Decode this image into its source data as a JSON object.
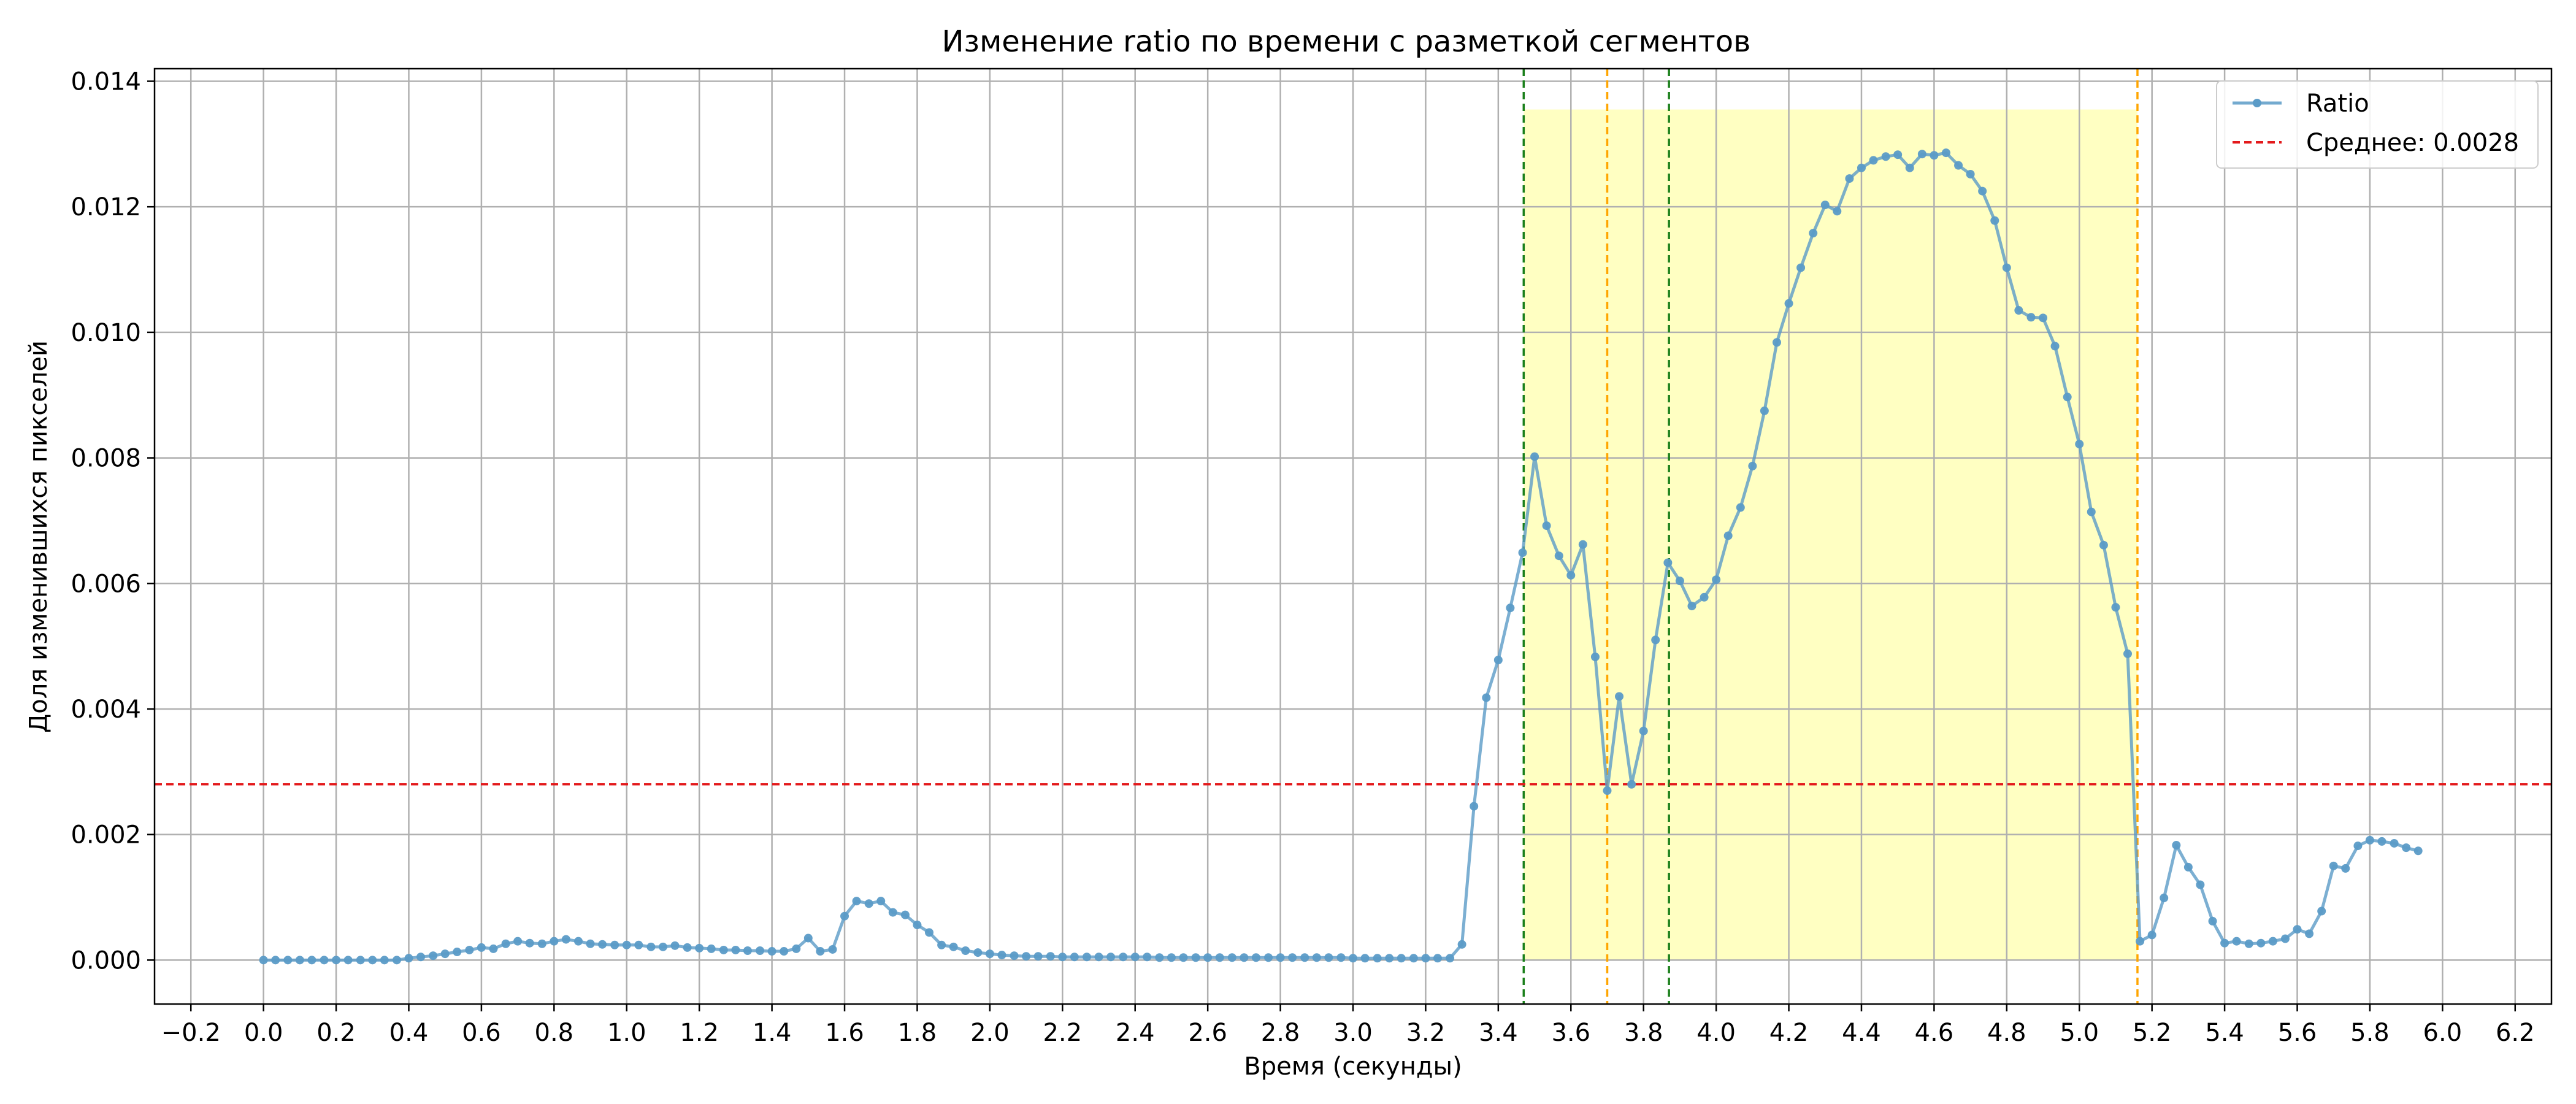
{
  "chart_data": {
    "type": "line",
    "title": "Изменение ratio по времени с разметкой сегментов",
    "xlabel": "Время (секунды)",
    "ylabel": "Доля изменившихся пикселей",
    "xlim": [
      -0.3,
      6.3
    ],
    "ylim": [
      -0.0007,
      0.0142
    ],
    "grid": true,
    "legend_position": "top-right",
    "x_ticks": [
      -0.2,
      0.0,
      0.2,
      0.4,
      0.6,
      0.8,
      1.0,
      1.2,
      1.4,
      1.6,
      1.8,
      2.0,
      2.2,
      2.4,
      2.6,
      2.8,
      3.0,
      3.2,
      3.4,
      3.6,
      3.8,
      4.0,
      4.2,
      4.4,
      4.6,
      4.8,
      5.0,
      5.2,
      5.4,
      5.6,
      5.8,
      6.0,
      6.2
    ],
    "x_tick_labels": [
      "−0.2",
      "0.0",
      "0.2",
      "0.4",
      "0.6",
      "0.8",
      "1.0",
      "1.2",
      "1.4",
      "1.6",
      "1.8",
      "2.0",
      "2.2",
      "2.4",
      "2.6",
      "2.8",
      "3.0",
      "3.2",
      "3.4",
      "3.6",
      "3.8",
      "4.0",
      "4.2",
      "4.4",
      "4.6",
      "4.8",
      "5.0",
      "5.2",
      "5.4",
      "5.6",
      "5.8",
      "6.0",
      "6.2"
    ],
    "y_ticks": [
      0,
      0.002,
      0.004,
      0.006,
      0.008,
      0.01,
      0.012,
      0.014
    ],
    "y_tick_labels": [
      "0.000",
      "0.002",
      "0.004",
      "0.006",
      "0.008",
      "0.010",
      "0.012",
      "0.014"
    ],
    "series": [
      {
        "name": "Ratio",
        "color": "#5b9bc7",
        "x": [
          0.0,
          0.033,
          0.067,
          0.1,
          0.133,
          0.167,
          0.2,
          0.233,
          0.267,
          0.3,
          0.333,
          0.367,
          0.4,
          0.433,
          0.467,
          0.5,
          0.533,
          0.567,
          0.6,
          0.633,
          0.667,
          0.7,
          0.733,
          0.767,
          0.8,
          0.833,
          0.867,
          0.9,
          0.933,
          0.967,
          1.0,
          1.033,
          1.067,
          1.1,
          1.133,
          1.167,
          1.2,
          1.233,
          1.267,
          1.3,
          1.333,
          1.367,
          1.4,
          1.433,
          1.467,
          1.5,
          1.533,
          1.567,
          1.6,
          1.633,
          1.667,
          1.7,
          1.733,
          1.767,
          1.8,
          1.833,
          1.867,
          1.9,
          1.933,
          1.967,
          2.0,
          2.033,
          2.067,
          2.1,
          2.133,
          2.167,
          2.2,
          2.233,
          2.267,
          2.3,
          2.333,
          2.367,
          2.4,
          2.433,
          2.467,
          2.5,
          2.533,
          2.567,
          2.6,
          2.633,
          2.667,
          2.7,
          2.733,
          2.767,
          2.8,
          2.833,
          2.867,
          2.9,
          2.933,
          2.967,
          3.0,
          3.033,
          3.067,
          3.1,
          3.133,
          3.167,
          3.2,
          3.233,
          3.267,
          3.3,
          3.333,
          3.367,
          3.4,
          3.433,
          3.467,
          3.5,
          3.533,
          3.567,
          3.6,
          3.633,
          3.667,
          3.7,
          3.733,
          3.767,
          3.8,
          3.833,
          3.867,
          3.9,
          3.933,
          3.967,
          4.0,
          4.033,
          4.067,
          4.1,
          4.133,
          4.167,
          4.2,
          4.233,
          4.267,
          4.3,
          4.333,
          4.367,
          4.4,
          4.433,
          4.467,
          4.5,
          4.533,
          4.567,
          4.6,
          4.633,
          4.667,
          4.7,
          4.733,
          4.767,
          4.8,
          4.833,
          4.867,
          4.9,
          4.933,
          4.967,
          5.0,
          5.033,
          5.067,
          5.1,
          5.133,
          5.167,
          5.2,
          5.233,
          5.267,
          5.3,
          5.333,
          5.367,
          5.4,
          5.433,
          5.467,
          5.5,
          5.533,
          5.567,
          5.6,
          5.633,
          5.667,
          5.7,
          5.733,
          5.767,
          5.8,
          5.833,
          5.867,
          5.9,
          5.933
        ],
        "values": [
          0.0,
          0.0,
          0.0,
          0.0,
          0.0,
          0.0,
          0.0,
          0.0,
          0.0,
          0.0,
          0.0,
          0.0,
          3e-05,
          5e-05,
          7e-05,
          0.0001,
          0.00013,
          0.00016,
          0.0002,
          0.00018,
          0.00026,
          0.0003,
          0.00027,
          0.00026,
          0.0003,
          0.00033,
          0.0003,
          0.00026,
          0.00025,
          0.00024,
          0.00024,
          0.00024,
          0.00021,
          0.00021,
          0.00023,
          0.0002,
          0.00019,
          0.00018,
          0.00016,
          0.00016,
          0.00015,
          0.00015,
          0.00014,
          0.00014,
          0.00018,
          0.00035,
          0.00014,
          0.00017,
          0.0007,
          0.00094,
          0.0009,
          0.00094,
          0.00076,
          0.00072,
          0.00056,
          0.00044,
          0.00024,
          0.00021,
          0.00015,
          0.00012,
          0.0001,
          8e-05,
          7e-05,
          6e-05,
          6e-05,
          6e-05,
          5e-05,
          5e-05,
          5e-05,
          5e-05,
          5e-05,
          5e-05,
          5e-05,
          5e-05,
          4e-05,
          4e-05,
          4e-05,
          4e-05,
          4e-05,
          4e-05,
          4e-05,
          4e-05,
          4e-05,
          4e-05,
          4e-05,
          4e-05,
          4e-05,
          4e-05,
          4e-05,
          4e-05,
          3e-05,
          3e-05,
          3e-05,
          3e-05,
          3e-05,
          3e-05,
          3e-05,
          3e-05,
          3e-05,
          0.00025,
          0.00245,
          0.00418,
          0.00478,
          0.00561,
          0.00649,
          0.00802,
          0.00692,
          0.00644,
          0.00613,
          0.00662,
          0.00483,
          0.0027,
          0.0042,
          0.0028,
          0.00365,
          0.0051,
          0.00633,
          0.00604,
          0.00564,
          0.00578,
          0.00606,
          0.00676,
          0.00721,
          0.00787,
          0.00875,
          0.00984,
          0.01046,
          0.01103,
          0.01158,
          0.01203,
          0.01193,
          0.01245,
          0.01262,
          0.01274,
          0.0128,
          0.01283,
          0.01262,
          0.01284,
          0.01282,
          0.01286,
          0.01266,
          0.01252,
          0.01225,
          0.01178,
          0.01103,
          0.01035,
          0.01024,
          0.01023,
          0.00978,
          0.00897,
          0.00822,
          0.00714,
          0.00661,
          0.00562,
          0.00488,
          0.0003,
          0.0004,
          0.00099,
          0.00183,
          0.00148,
          0.0012,
          0.00062,
          0.00027,
          0.0003,
          0.00026,
          0.00027,
          0.0003,
          0.00034,
          0.00049,
          0.00042,
          0.00078,
          0.0015,
          0.00146,
          0.00182,
          0.00191,
          0.00189,
          0.00186,
          0.00179,
          0.00174
        ]
      }
    ],
    "mean_line": {
      "name": "Среднее: 0.0028",
      "value": 0.0028,
      "color": "#e31a1c"
    },
    "segments": [
      {
        "x_start": 3.47,
        "x_end": 5.16,
        "y_top": 0.01355,
        "fill": "#ffff99"
      }
    ],
    "vertical_lines": [
      {
        "x": 3.47,
        "color": "#1a7f1a"
      },
      {
        "x": 3.7,
        "color": "#ffa500"
      },
      {
        "x": 3.87,
        "color": "#1a7f1a"
      },
      {
        "x": 5.16,
        "color": "#ffa500"
      }
    ]
  }
}
